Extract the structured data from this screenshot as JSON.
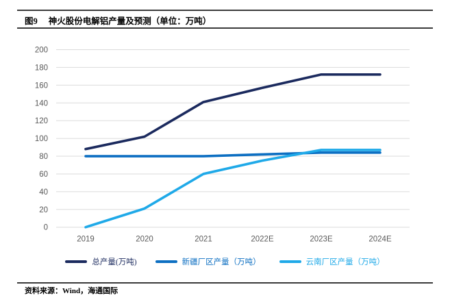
{
  "header": {
    "figure_label": "图9",
    "title": "神火股份电解铝产量及预测（单位：万吨）"
  },
  "footer": {
    "source": "资料来源：Wind，海通国际"
  },
  "colors": {
    "total_series": "#1B2A5E",
    "xinjiang_series": "#0D6FC2",
    "yunnan_series": "#1FA9E8",
    "gridline": "#DBDBDB",
    "tick_label": "#595959",
    "rule": "#3a3a3a"
  },
  "chart_data": {
    "type": "line",
    "title": "神火股份电解铝产量及预测（单位：万吨）",
    "categories": [
      "2019",
      "2020",
      "2021",
      "2022E",
      "2023E",
      "2024E"
    ],
    "series": [
      {
        "name": "总产量(万吨)",
        "color": "#1B2A5E",
        "values": [
          88,
          102,
          141,
          157,
          172,
          172
        ]
      },
      {
        "name": "新疆厂区产量（万吨）",
        "color": "#0D6FC2",
        "values": [
          80,
          80,
          80,
          82,
          84,
          84
        ]
      },
      {
        "name": "云南厂区产量（万吨）",
        "color": "#1FA9E8",
        "values": [
          0,
          21,
          60,
          75,
          87,
          87
        ]
      }
    ],
    "xlabel": "",
    "ylabel": "",
    "ylim": [
      0,
      200
    ],
    "ytick_step": 20,
    "grid": true,
    "legend_position": "bottom"
  }
}
